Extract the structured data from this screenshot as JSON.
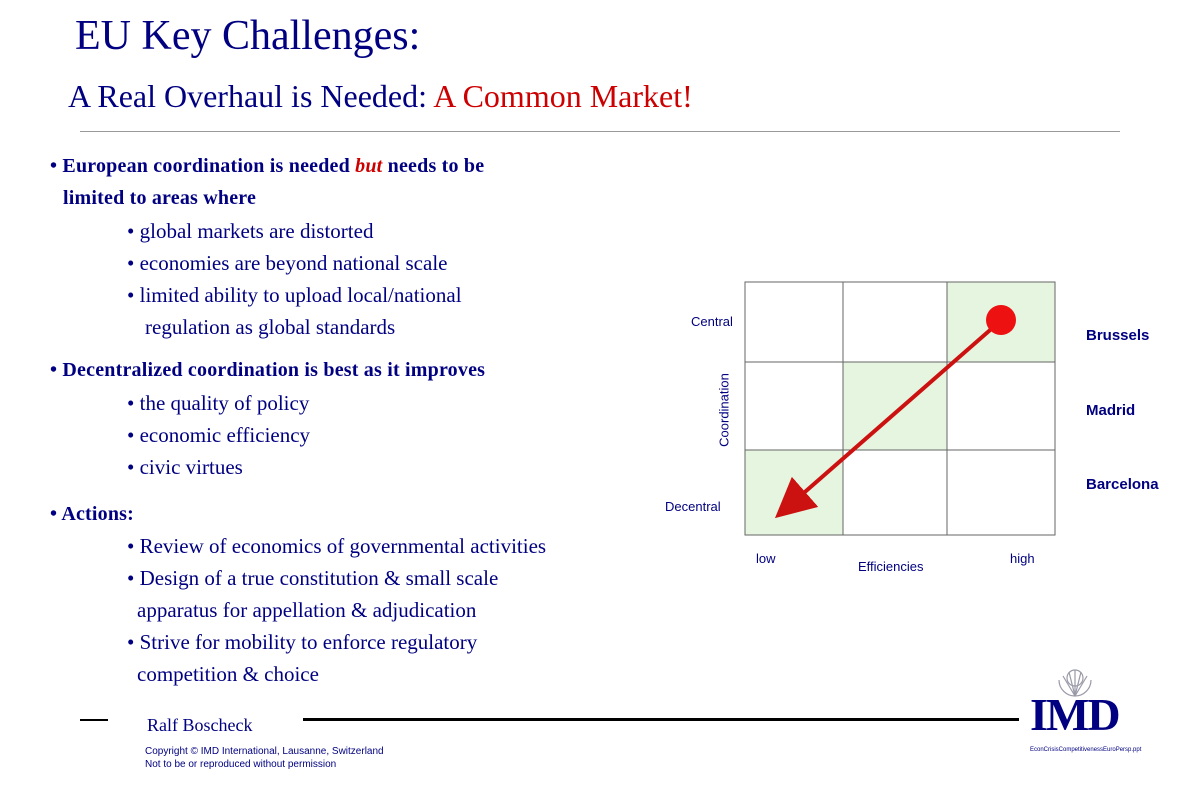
{
  "header": {
    "title": "EU Key Challenges:",
    "subtitle_main": "A Real Overhaul is Needed:",
    "subtitle_accent": "A Common Market!"
  },
  "sections": {
    "s1": {
      "line1_a": "European coordination is needed",
      "line1_em": "but",
      "line1_b": "needs to be",
      "line2": "limited to areas where",
      "items": [
        "global markets are distorted",
        "economies are beyond national scale",
        "limited ability to upload local/national",
        "regulation as global standards"
      ]
    },
    "s2": {
      "heading": "Decentralized coordination is best as it improves",
      "items": [
        "the quality of policy",
        "economic efficiency",
        "civic virtues"
      ]
    },
    "s3": {
      "heading": "Actions:",
      "items": [
        "Review of economics of governmental activities",
        "Design of a true constitution & small scale",
        "apparatus for appellation & adjudication",
        "Strive for mobility to enforce regulatory",
        "competition & choice"
      ]
    }
  },
  "diagram": {
    "y_top": "Central",
    "y_bottom": "Decentral",
    "y_axis": "Coordination",
    "x_left": "low",
    "x_right": "high",
    "x_axis": "Efficiencies",
    "rows": [
      "Brussels",
      "Madrid",
      "Barcelona"
    ],
    "colors": {
      "arrow": "#cc1111",
      "highlight": "#e6f5e0",
      "grid": "#666666"
    }
  },
  "footer": {
    "author": "Ralf Boscheck",
    "copyright_1": "Copyright © IMD International, Lausanne, Switzerland",
    "copyright_2": "Not to be or reproduced without permission",
    "file": "EconCrisisCompetitivenessEuroPersp.ppt",
    "logo": "IMD"
  }
}
